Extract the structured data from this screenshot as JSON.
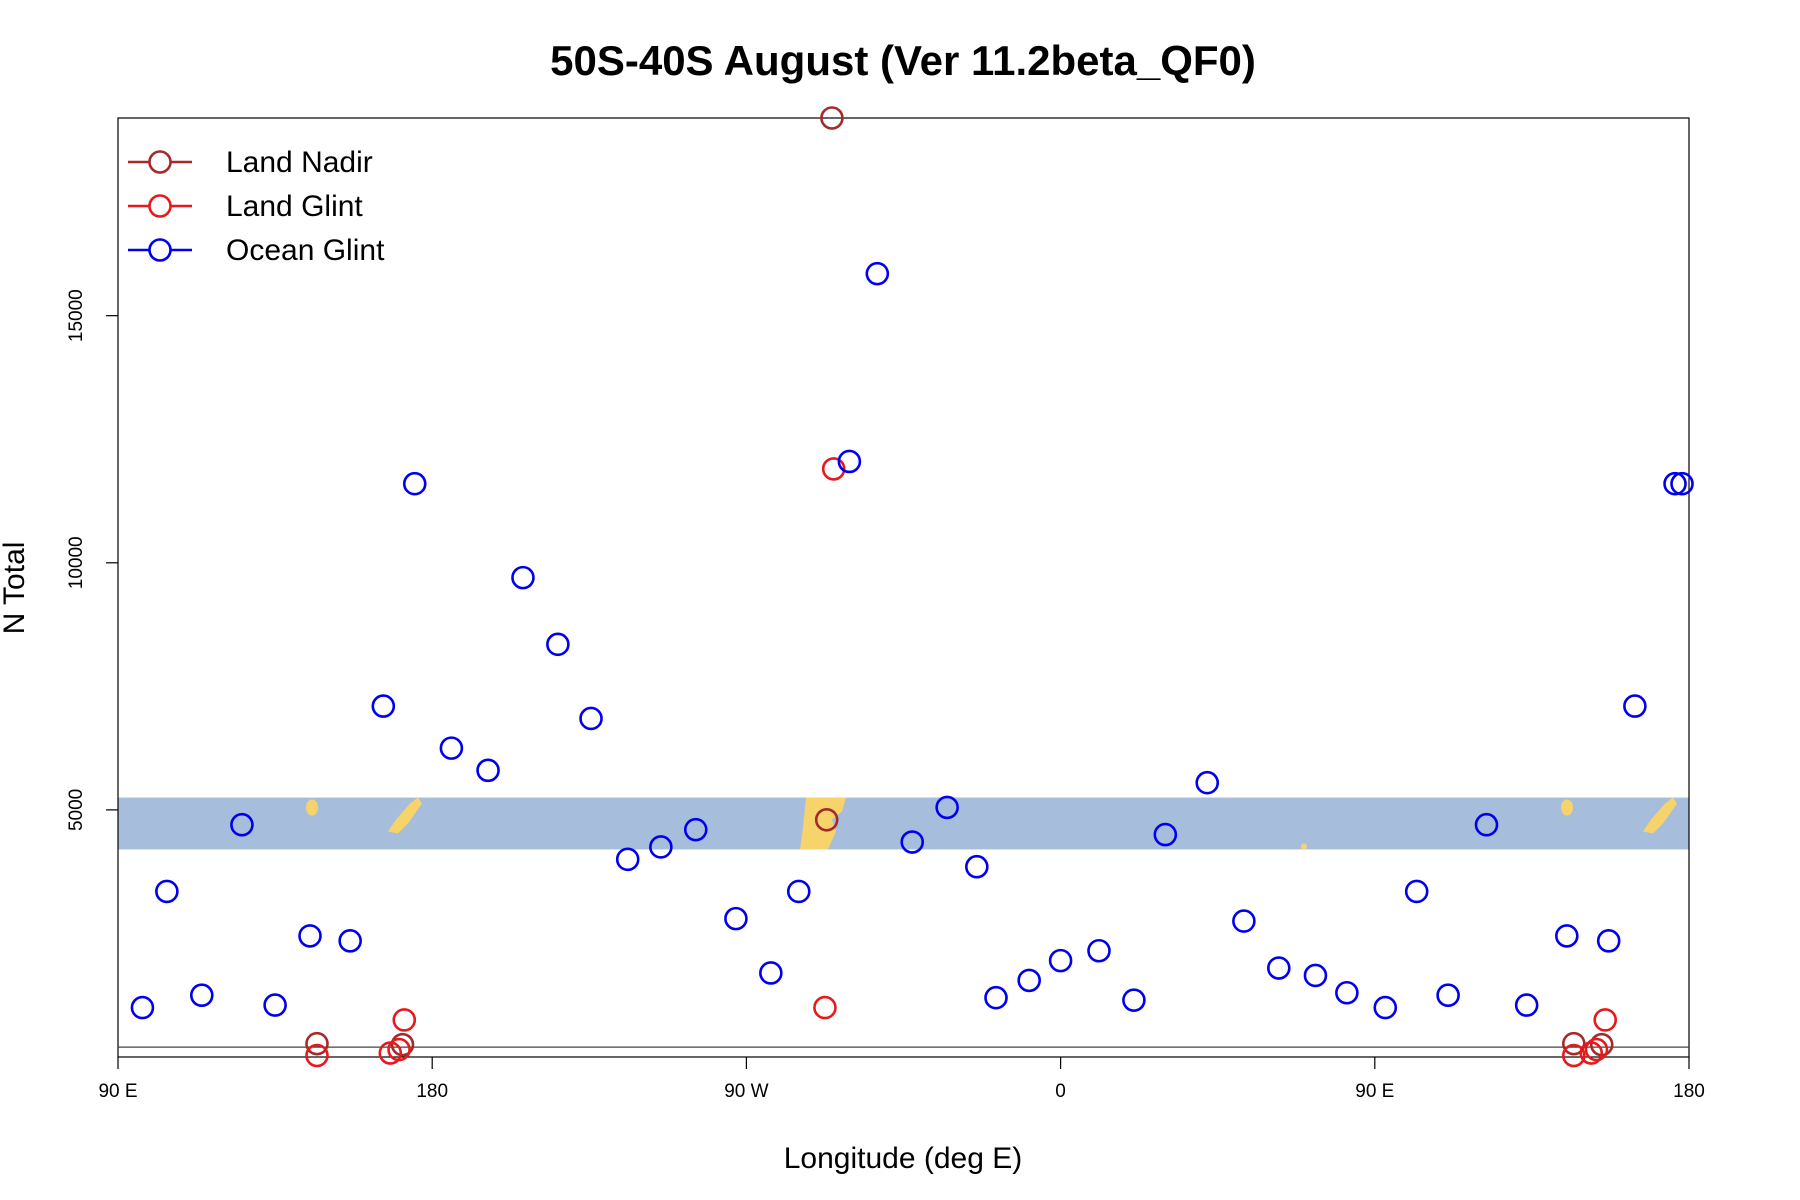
{
  "chart_data": {
    "type": "scatter",
    "title": "50S-40S August (Ver 11.2beta_QF0)",
    "xlabel": "Longitude (deg E)",
    "ylabel": "N Total",
    "x_unit": "degrees east (unwrapped from 90 E)",
    "xlim": [
      90,
      540
    ],
    "ylim": [
      0,
      19000
    ],
    "x_ticks": [
      {
        "value": 90,
        "label": "90 E"
      },
      {
        "value": 180,
        "label": "180"
      },
      {
        "value": 270,
        "label": "90 W"
      },
      {
        "value": 360,
        "label": "0"
      },
      {
        "value": 450,
        "label": "90 E"
      },
      {
        "value": 540,
        "label": "180"
      }
    ],
    "y_ticks": [
      {
        "value": 5000,
        "label": "5000"
      },
      {
        "value": 10000,
        "label": "10000"
      },
      {
        "value": 15000,
        "label": "15000"
      }
    ],
    "legend": {
      "position": "top-left"
    },
    "map_band": {
      "y_range": [
        4200,
        5250
      ],
      "water_color": "#a6bddb",
      "land_color": "#f7d36b"
    },
    "baseline_y": 200,
    "series": [
      {
        "name": "Land Nadir",
        "color": "#a52a2a",
        "x": [
          147,
          171.5,
          293,
          294.5,
          507,
          515
        ],
        "y": [
          270,
          250,
          4800,
          19000,
          270,
          250
        ]
      },
      {
        "name": "Land Glint",
        "color": "#e41a1c",
        "x": [
          147,
          168,
          170.5,
          172,
          292.5,
          295,
          507,
          512,
          513.5,
          516
        ],
        "y": [
          30,
          80,
          150,
          750,
          1000,
          11900,
          30,
          80,
          150,
          750
        ]
      },
      {
        "name": "Ocean Glint",
        "color": "#0000ee",
        "x": [
          97,
          104,
          114,
          125.5,
          135,
          145,
          156.5,
          166,
          175,
          185.5,
          196,
          206,
          216,
          225.5,
          236,
          245.5,
          255.5,
          267,
          277,
          285,
          299.5,
          307.5,
          317.5,
          327.5,
          336,
          341.5,
          351,
          360,
          371,
          381,
          390,
          402,
          412.5,
          422.5,
          433,
          442,
          453,
          462,
          471,
          482,
          493.5,
          505,
          517,
          524.5,
          536,
          538
        ],
        "y": [
          1000,
          3350,
          1250,
          4700,
          1050,
          2450,
          2350,
          7100,
          11600,
          6250,
          5800,
          9700,
          8350,
          6850,
          4000,
          4250,
          4600,
          2800,
          1700,
          3350,
          12050,
          15850,
          4350,
          5050,
          3850,
          1200,
          1550,
          1950,
          2150,
          1150,
          4500,
          5550,
          2750,
          1800,
          1650,
          1300,
          1000,
          3350,
          1250,
          4700,
          1050,
          2450,
          2350,
          7100,
          11600,
          11600
        ]
      }
    ]
  }
}
